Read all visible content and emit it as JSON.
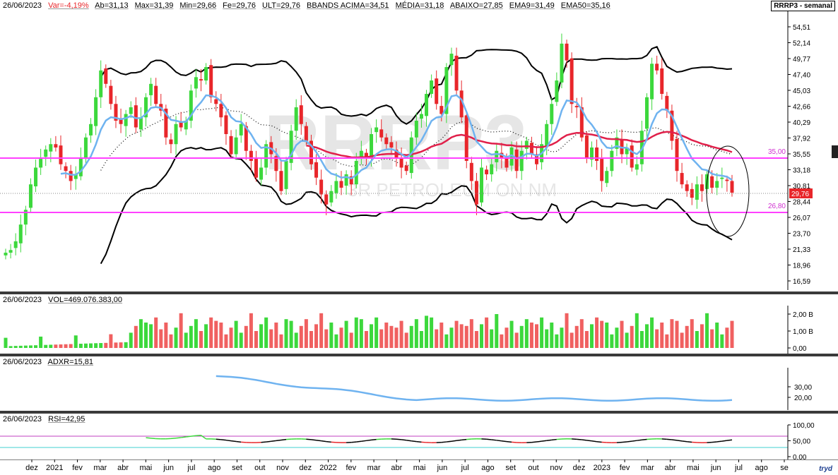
{
  "header": {
    "date": "26/06/2023",
    "var": "Var=-4,19%",
    "ab": "Ab=31,13",
    "max": "Max=31,39",
    "min": "Min=29,66",
    "fe": "Fe=29,76",
    "ult": "ULT=29,76",
    "bbands_acima": "BBANDS ACIMA=34,51",
    "media": "MÉDIA=31,18",
    "abaixo": "ABAIXO=27,85",
    "ema9": "EMA9=31,49",
    "ema50": "EMA50=35,16",
    "symbol": "RRRP3 - semanal"
  },
  "watermark": {
    "big": "RRRP3",
    "small": "3R PETROLEUM ON NM"
  },
  "price_axis": [
    "54,51",
    "52,14",
    "49,77",
    "47,40",
    "45,03",
    "42,66",
    "40,29",
    "37,92",
    "35,55",
    "33,18",
    "30,81",
    "28,44",
    "26,07",
    "23,70",
    "21,33",
    "18,96",
    "16,59"
  ],
  "levels": {
    "upper": "35,00",
    "lower": "26,80",
    "last": "29,76"
  },
  "colors": {
    "up": "#3cd83c",
    "down": "#e8262a",
    "ema9": "#6fb3f0",
    "ema50": "#e0204a",
    "bbands": "#000000",
    "level_line": "#ff40ff",
    "volume_up": "#3cd83c",
    "volume_down": "#f06060"
  },
  "volume_pane": {
    "header_date": "26/06/2023",
    "label": "VOL=469.076.383,00",
    "axis": [
      "2,00 B",
      "1,00 B",
      "0,00"
    ]
  },
  "adxr_pane": {
    "header_date": "26/06/2023",
    "label": "ADXR=15,81",
    "axis": [
      "30,00",
      "20,00"
    ]
  },
  "rsi_pane": {
    "header_date": "26/06/2023",
    "label": "RSI=42,95",
    "axis": [
      "100,00",
      "50,00",
      "0,00"
    ]
  },
  "time_axis": [
    "dez",
    "2021",
    "fev",
    "mar",
    "abr",
    "mai",
    "jun",
    "jul",
    "ago",
    "set",
    "out",
    "nov",
    "dez",
    "2022",
    "fev",
    "mar",
    "abr",
    "mai",
    "jun",
    "jul",
    "ago",
    "set",
    "out",
    "nov",
    "dez",
    "2023",
    "fev",
    "mar",
    "abr",
    "mai",
    "jun",
    "jul",
    "ago",
    "se"
  ],
  "brand": "tryd",
  "chart_data": {
    "type": "candlestick",
    "period": "weekly",
    "ylim": [
      16.59,
      54.51
    ],
    "levels": [
      35.0,
      26.8
    ],
    "last": 29.76,
    "ohlc_close": [
      20.8,
      21.2,
      22.5,
      25.0,
      27.2,
      31.0,
      33.5,
      34.8,
      36.2,
      37.0,
      36.5,
      34.0,
      33.0,
      31.5,
      32.5,
      35.0,
      38.0,
      40.0,
      44.0,
      48.0,
      46.0,
      43.0,
      40.5,
      40.0,
      41.5,
      42.5,
      39.5,
      41.0,
      44.0,
      46.0,
      43.0,
      42.0,
      38.0,
      37.0,
      40.0,
      39.5,
      40.5,
      45.0,
      47.0,
      46.5,
      48.5,
      44.0,
      43.0,
      41.0,
      38.5,
      35.5,
      38.0,
      40.0,
      36.0,
      34.5,
      32.0,
      33.5,
      37.0,
      35.5,
      33.0,
      30.0,
      34.5,
      39.0,
      42.5,
      40.0,
      37.5,
      34.0,
      32.0,
      29.5,
      28.0,
      30.0,
      31.5,
      30.5,
      32.5,
      31.0,
      34.5,
      36.0,
      35.0,
      38.5,
      39.5,
      38.0,
      37.0,
      36.5,
      35.0,
      33.5,
      33.0,
      38.0,
      40.5,
      41.5,
      44.5,
      46.5,
      43.0,
      41.5,
      48.5,
      50.5,
      45.0,
      41.0,
      34.5,
      31.5,
      28.0,
      33.5,
      32.5,
      34.0,
      36.0,
      35.0,
      33.5,
      36.5,
      33.0,
      36.0,
      37.5,
      35.5,
      34.0,
      37.0,
      40.0,
      43.0,
      46.5,
      52.0,
      49.5,
      43.0,
      42.5,
      38.0,
      35.0,
      36.5,
      34.5,
      31.5,
      33.0,
      36.0,
      38.0,
      35.5,
      36.5,
      33.5,
      34.0,
      39.0,
      44.0,
      49.0,
      48.0,
      44.5,
      42.0,
      37.5,
      33.0,
      31.0,
      30.0,
      29.0,
      31.0,
      30.0,
      32.5,
      30.5,
      31.5,
      32.0,
      31.5,
      29.76
    ],
    "volume_axis_b": [
      0,
      1.0,
      2.0
    ],
    "adxr_last": 15.81,
    "rsi_last": 42.95,
    "ema9_last": 31.49,
    "ema50_last": 35.16,
    "bbands": {
      "upper": 34.51,
      "middle": 31.18,
      "lower": 27.85
    }
  }
}
